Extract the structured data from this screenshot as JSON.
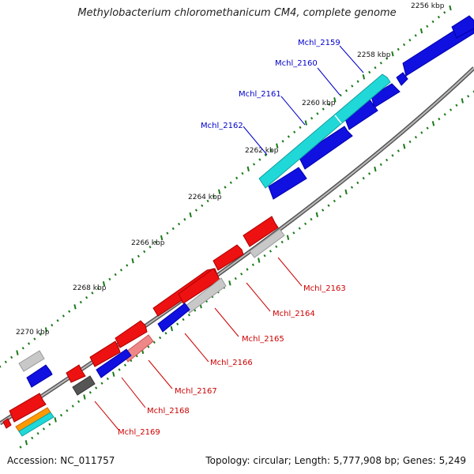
{
  "title": "Methylobacterium chloromethanicum CM4, complete genome",
  "footer": {
    "accession": "Accession: NC_011757",
    "summary": "Topology: circular; Length: 5,777,908 bp; Genes: 5,249"
  },
  "colors": {
    "blue": "#1010e0",
    "cyan": "#20d8d8",
    "red": "#ee1111",
    "gray": "#c0c0c0",
    "dark_gray": "#555555",
    "pink": "#ee8888",
    "orange": "#ff9900",
    "backbone": "#888888",
    "tick": "#1a7a1a",
    "label_blue": "#0000cc",
    "label_red": "#cc0000"
  },
  "scale_labels": [
    "2256 kbp",
    "2258 kbp",
    "2260 kbp",
    "2262 kbp",
    "2264 kbp",
    "2266 kbp",
    "2268 kbp",
    "2270 kbp"
  ],
  "top_labels": [
    "Mchl_2159",
    "Mchl_2160",
    "Mchl_2161",
    "Mchl_2162"
  ],
  "bottom_labels": [
    "Mchl_2163",
    "Mchl_2164",
    "Mchl_2165",
    "Mchl_2166",
    "Mchl_2167",
    "Mchl_2168",
    "Mchl_2169"
  ]
}
